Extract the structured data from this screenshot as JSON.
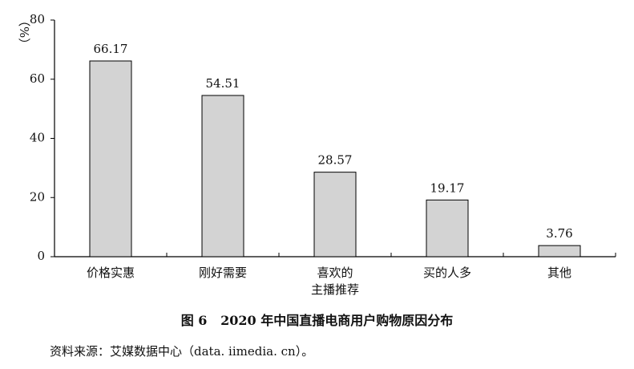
{
  "chart_data": {
    "type": "bar",
    "title": "图 6   2020 年中国直播电商用户购物原因分布",
    "y_label": "（%）",
    "source": "资料来源：艾媒数据中心（data. iimedia. cn）。",
    "categories": [
      "价格实惠",
      "刚好需要",
      "喜欢的\n主播推荐",
      "买的人多",
      "其他"
    ],
    "values": [
      66.17,
      54.51,
      28.57,
      19.17,
      3.76
    ],
    "color": "#d3d3d3",
    "ylim": [
      0,
      80
    ],
    "yticks": [
      0,
      20,
      40,
      60,
      80
    ]
  }
}
